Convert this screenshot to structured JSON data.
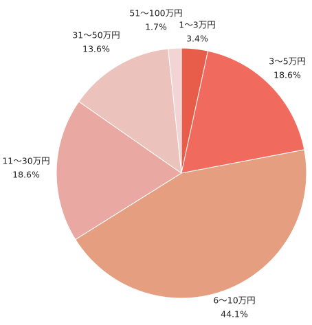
{
  "chart_data": {
    "type": "pie",
    "categories": [
      "1～3万円",
      "3～5万円",
      "6～10万円",
      "11～30万円",
      "31～50万円",
      "51～100万円"
    ],
    "values": [
      3.4,
      18.6,
      44.1,
      18.6,
      13.6,
      1.7
    ],
    "value_labels": [
      "3.4%",
      "18.6%",
      "44.1%",
      "18.6%",
      "13.6%",
      "1.7%"
    ],
    "colors": [
      "#e85c4a",
      "#f06b5e",
      "#e59e7f",
      "#eaa8a2",
      "#ebc2bc",
      "#f2d4d4"
    ]
  }
}
